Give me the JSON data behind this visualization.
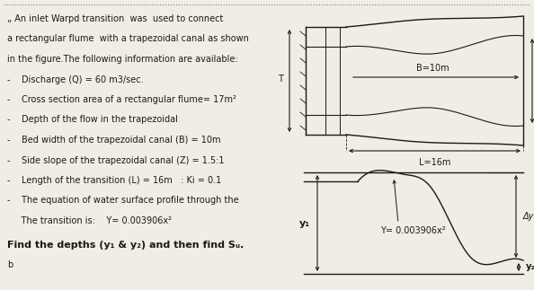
{
  "bg_color": "#f0ede5",
  "text_color": "#1a1a1a",
  "diagram_line_color": "#1a1a1a",
  "text_block": [
    [
      "„ An inlet Warpd transition  was  used to connect",
      false
    ],
    [
      "a rectangular flume  with a trapezoidal canal as shown",
      false
    ],
    [
      "in the figure.The following information are available:",
      false
    ],
    [
      "-    Discharge (Q) = 60 m3/sec.",
      false
    ],
    [
      "-    Cross section area of a rectangular flume= 17m²",
      false
    ],
    [
      "-    Depth of the flow in the trapezoidal",
      false
    ],
    [
      "-    Bed width of the trapezoidal canal (B) = 10m",
      false
    ],
    [
      "-    Side slope of the trapezoidal canal (Z) = 1.5:1",
      false
    ],
    [
      "-    Length of the transition (L) = 16m   : Ki = 0.1",
      false
    ],
    [
      "-    The equation of water surface profile through the",
      false
    ],
    [
      "     The transition is:    Y= 0.003906x²",
      false
    ],
    [
      "Find the depths (y₁ & y₂) and then find Sᵤ.",
      true
    ],
    [
      "b",
      false
    ]
  ],
  "dotted_border": true
}
